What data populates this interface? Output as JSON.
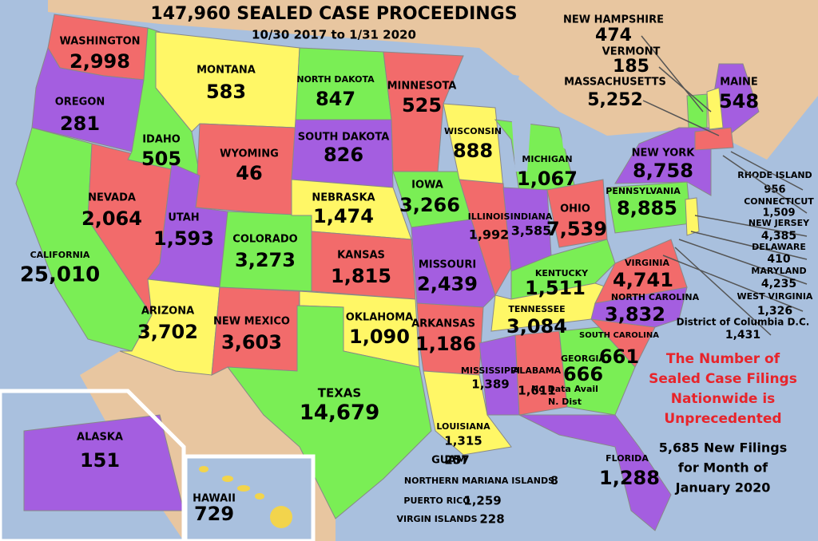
{
  "header": {
    "title": "147,960 SEALED CASE PROCEEDINGS",
    "subtitle": "10/30 2017 to 1/31 2020"
  },
  "states": [
    {
      "name": "WASHINGTON",
      "count": "2,998"
    },
    {
      "name": "OREGON",
      "count": "281"
    },
    {
      "name": "CALIFORNIA",
      "count": "25,010"
    },
    {
      "name": "NEVADA",
      "count": "2,064"
    },
    {
      "name": "IDAHO",
      "count": "505"
    },
    {
      "name": "MONTANA",
      "count": "583"
    },
    {
      "name": "WYOMING",
      "count": "46"
    },
    {
      "name": "UTAH",
      "count": "1,593"
    },
    {
      "name": "ARIZONA",
      "count": "3,702"
    },
    {
      "name": "COLORADO",
      "count": "3,273"
    },
    {
      "name": "NEW MEXICO",
      "count": "3,603"
    },
    {
      "name": "NORTH DAKOTA",
      "count": "847"
    },
    {
      "name": "SOUTH DAKOTA",
      "count": "826"
    },
    {
      "name": "NEBRASKA",
      "count": "1,474"
    },
    {
      "name": "KANSAS",
      "count": "1,815"
    },
    {
      "name": "OKLAHOMA",
      "count": "1,090"
    },
    {
      "name": "TEXAS",
      "count": "14,679"
    },
    {
      "name": "MINNESOTA",
      "count": "525"
    },
    {
      "name": "IOWA",
      "count": "3,266"
    },
    {
      "name": "MISSOURI",
      "count": "2,439"
    },
    {
      "name": "ARKANSAS",
      "count": "1,186"
    },
    {
      "name": "LOUISIANA",
      "count": "1,315"
    },
    {
      "name": "WISCONSIN",
      "count": "888"
    },
    {
      "name": "ILLINOIS",
      "count": "1,992"
    },
    {
      "name": "MICHIGAN",
      "count": "1,067"
    },
    {
      "name": "INDIANA",
      "count": "3,585"
    },
    {
      "name": "OHIO",
      "count": "7,539"
    },
    {
      "name": "KENTUCKY",
      "count": "1,511"
    },
    {
      "name": "TENNESSEE",
      "count": "3,084"
    },
    {
      "name": "MISSISSIPPI",
      "count": "1,389"
    },
    {
      "name": "ALABAMA",
      "count": "1,611"
    },
    {
      "name": "GEORGIA",
      "count": "666"
    },
    {
      "name": "FLORIDA",
      "count": "1,288"
    },
    {
      "name": "SOUTH CAROLINA",
      "count": "661"
    },
    {
      "name": "NORTH CAROLINA",
      "count": "3,832"
    },
    {
      "name": "VIRGINIA",
      "count": "4,741"
    },
    {
      "name": "PENNSYLVANIA",
      "count": "8,885"
    },
    {
      "name": "NEW YORK",
      "count": "8,758"
    },
    {
      "name": "MAINE",
      "count": "548"
    },
    {
      "name": "ALASKA",
      "count": "151"
    },
    {
      "name": "HAWAII",
      "count": "729"
    }
  ],
  "callouts": [
    {
      "name": "NEW HAMPSHIRE",
      "count": "474"
    },
    {
      "name": "VERMONT",
      "count": "185"
    },
    {
      "name": "MASSACHUSETTS",
      "count": "5,252"
    },
    {
      "name": "RHODE ISLAND",
      "count": "956"
    },
    {
      "name": "CONNECTICUT",
      "count": "1,509"
    },
    {
      "name": "NEW JERSEY",
      "count": "4,385"
    },
    {
      "name": "DELAWARE",
      "count": "410"
    },
    {
      "name": "MARYLAND",
      "count": "4,235"
    },
    {
      "name": "WEST VIRGINIA",
      "count": "1,326"
    },
    {
      "name": "District of Columbia D.C.",
      "count": "1,431"
    }
  ],
  "territories": [
    {
      "name": "GUAM",
      "count": "257"
    },
    {
      "name": "NORTHERN MARIANA ISLANDS",
      "count": "8"
    },
    {
      "name": "PUERTO RICO",
      "count": "1,259"
    },
    {
      "name": "VIRGIN ISLANDS",
      "count": "228"
    }
  ],
  "georgia_note": [
    "No Data Avail",
    "N. Dist"
  ],
  "annotation": {
    "highlight": [
      "The Number of",
      "Sealed Case Filings",
      "Nationwide is",
      "Unprecedented"
    ],
    "detail": [
      "5,685 New Filings",
      "for Month of",
      "January 2020"
    ]
  }
}
